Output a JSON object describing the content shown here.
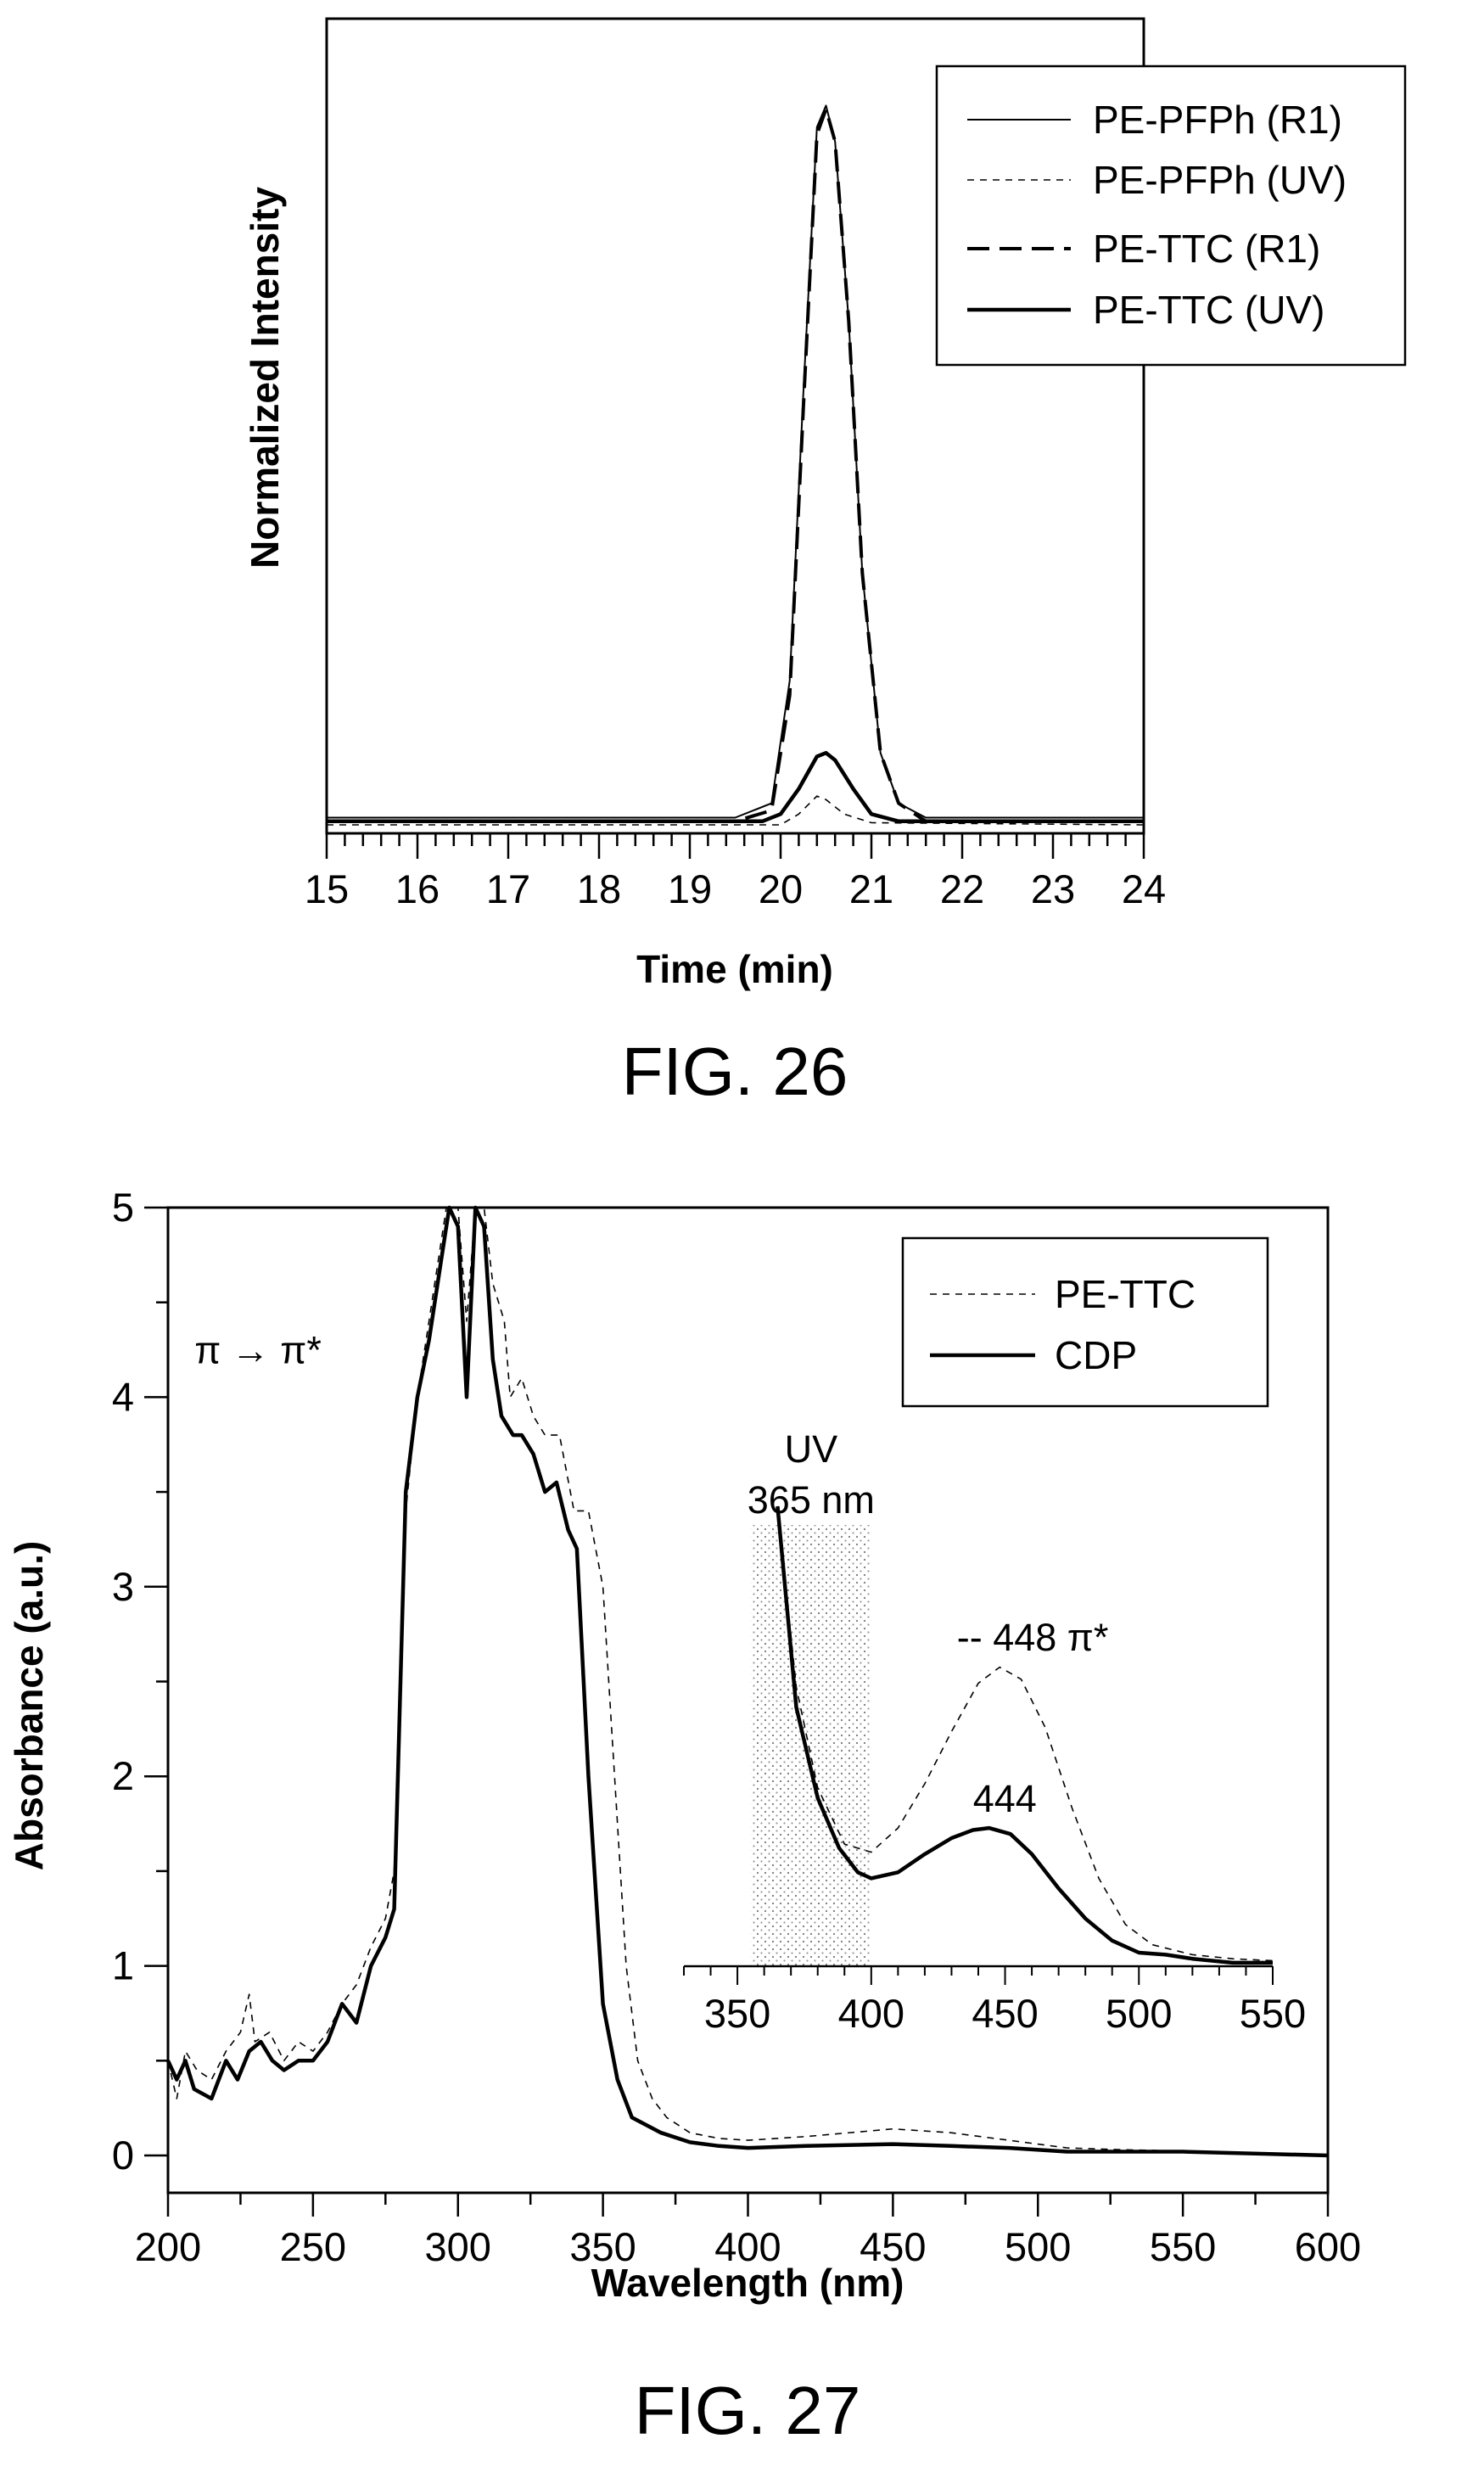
{
  "figures": [
    {
      "caption": "FIG. 26",
      "chart_data": {
        "type": "line",
        "title": "",
        "xlabel": "Time (min)",
        "ylabel": "Normalized Intensity",
        "xlim": [
          15,
          24
        ],
        "ylim": [
          0,
          1.05
        ],
        "x_ticks": [
          15,
          16,
          17,
          18,
          19,
          20,
          21,
          22,
          23,
          24
        ],
        "grid": false,
        "legend_position": "top-right",
        "series": [
          {
            "name": "PE-PFPh (R1)",
            "style": "thin-solid",
            "points": [
              [
                15,
                0.01
              ],
              [
                19.5,
                0.01
              ],
              [
                19.9,
                0.03
              ],
              [
                20.1,
                0.2
              ],
              [
                20.25,
                0.6
              ],
              [
                20.4,
                0.97
              ],
              [
                20.5,
                1.0
              ],
              [
                20.6,
                0.95
              ],
              [
                20.75,
                0.7
              ],
              [
                20.9,
                0.35
              ],
              [
                21.1,
                0.1
              ],
              [
                21.3,
                0.03
              ],
              [
                21.6,
                0.01
              ],
              [
                24,
                0.01
              ]
            ]
          },
          {
            "name": "PE-PFPh (UV)",
            "style": "thin-dashed",
            "points": [
              [
                15,
                0.0
              ],
              [
                20.0,
                0.0
              ],
              [
                20.2,
                0.015
              ],
              [
                20.4,
                0.04
              ],
              [
                20.5,
                0.035
              ],
              [
                20.7,
                0.015
              ],
              [
                21.0,
                0.003
              ],
              [
                24,
                0.0
              ]
            ]
          },
          {
            "name": "PE-TTC (R1)",
            "style": "long-dashed",
            "points": [
              [
                15,
                0.005
              ],
              [
                19.5,
                0.005
              ],
              [
                19.9,
                0.02
              ],
              [
                20.1,
                0.18
              ],
              [
                20.25,
                0.58
              ],
              [
                20.4,
                0.96
              ],
              [
                20.5,
                0.995
              ],
              [
                20.6,
                0.95
              ],
              [
                20.75,
                0.7
              ],
              [
                20.9,
                0.35
              ],
              [
                21.1,
                0.1
              ],
              [
                21.3,
                0.03
              ],
              [
                21.6,
                0.005
              ],
              [
                24,
                0.005
              ]
            ]
          },
          {
            "name": "PE-TTC (UV)",
            "style": "thick-solid",
            "points": [
              [
                15,
                0.005
              ],
              [
                19.8,
                0.005
              ],
              [
                20.0,
                0.015
              ],
              [
                20.2,
                0.05
              ],
              [
                20.4,
                0.095
              ],
              [
                20.5,
                0.1
              ],
              [
                20.6,
                0.09
              ],
              [
                20.8,
                0.05
              ],
              [
                21.0,
                0.015
              ],
              [
                21.3,
                0.005
              ],
              [
                24,
                0.005
              ]
            ]
          }
        ]
      }
    },
    {
      "caption": "FIG. 27",
      "chart_data": {
        "type": "line",
        "title": "",
        "xlabel": "Wavelength (nm)",
        "ylabel": "Absorbance (a.u.)",
        "xlim": [
          200,
          600
        ],
        "ylim": [
          -0.2,
          5
        ],
        "x_ticks": [
          200,
          250,
          300,
          350,
          400,
          450,
          500,
          550,
          600
        ],
        "y_ticks": [
          0,
          1,
          2,
          3,
          4,
          5
        ],
        "grid": false,
        "legend_position": "top-right",
        "annotations": [
          {
            "text": "π → π*",
            "x": 215,
            "y": 4.25
          }
        ],
        "series": [
          {
            "name": "PE-TTC",
            "style": "thin-dashed",
            "points": [
              [
                200,
                0.5
              ],
              [
                203,
                0.3
              ],
              [
                206,
                0.55
              ],
              [
                210,
                0.45
              ],
              [
                215,
                0.4
              ],
              [
                220,
                0.55
              ],
              [
                225,
                0.65
              ],
              [
                228,
                0.85
              ],
              [
                230,
                0.6
              ],
              [
                235,
                0.65
              ],
              [
                240,
                0.5
              ],
              [
                245,
                0.6
              ],
              [
                250,
                0.55
              ],
              [
                255,
                0.65
              ],
              [
                260,
                0.8
              ],
              [
                265,
                0.9
              ],
              [
                270,
                1.1
              ],
              [
                275,
                1.25
              ],
              [
                278,
                1.5
              ],
              [
                282,
                3.4
              ],
              [
                286,
                4.0
              ],
              [
                290,
                4.4
              ],
              [
                293,
                4.7
              ],
              [
                296,
                5.0
              ],
              [
                300,
                5.0
              ],
              [
                303,
                4.4
              ],
              [
                306,
                5.0
              ],
              [
                309,
                5.0
              ],
              [
                312,
                4.6
              ],
              [
                316,
                4.4
              ],
              [
                318,
                4.0
              ],
              [
                322,
                4.1
              ],
              [
                326,
                3.9
              ],
              [
                330,
                3.8
              ],
              [
                335,
                3.8
              ],
              [
                340,
                3.4
              ],
              [
                345,
                3.4
              ],
              [
                350,
                3.0
              ],
              [
                354,
                2.0
              ],
              [
                358,
                1.0
              ],
              [
                362,
                0.5
              ],
              [
                367,
                0.3
              ],
              [
                372,
                0.2
              ],
              [
                380,
                0.12
              ],
              [
                390,
                0.09
              ],
              [
                400,
                0.08
              ],
              [
                420,
                0.1
              ],
              [
                450,
                0.14
              ],
              [
                470,
                0.12
              ],
              [
                490,
                0.08
              ],
              [
                510,
                0.04
              ],
              [
                530,
                0.03
              ],
              [
                560,
                0.02
              ],
              [
                600,
                0.0
              ]
            ]
          },
          {
            "name": "CDP",
            "style": "thick-solid",
            "points": [
              [
                200,
                0.5
              ],
              [
                203,
                0.4
              ],
              [
                206,
                0.5
              ],
              [
                209,
                0.35
              ],
              [
                215,
                0.3
              ],
              [
                220,
                0.5
              ],
              [
                224,
                0.4
              ],
              [
                228,
                0.55
              ],
              [
                232,
                0.6
              ],
              [
                236,
                0.5
              ],
              [
                240,
                0.45
              ],
              [
                245,
                0.5
              ],
              [
                250,
                0.5
              ],
              [
                255,
                0.6
              ],
              [
                260,
                0.8
              ],
              [
                265,
                0.7
              ],
              [
                270,
                1.0
              ],
              [
                275,
                1.15
              ],
              [
                278,
                1.3
              ],
              [
                282,
                3.5
              ],
              [
                286,
                4.0
              ],
              [
                290,
                4.3
              ],
              [
                294,
                4.7
              ],
              [
                297,
                5.0
              ],
              [
                300,
                4.9
              ],
              [
                303,
                4.0
              ],
              [
                306,
                5.0
              ],
              [
                309,
                4.9
              ],
              [
                312,
                4.2
              ],
              [
                315,
                3.9
              ],
              [
                319,
                3.8
              ],
              [
                322,
                3.8
              ],
              [
                326,
                3.7
              ],
              [
                330,
                3.5
              ],
              [
                334,
                3.55
              ],
              [
                338,
                3.3
              ],
              [
                341,
                3.2
              ],
              [
                345,
                2.0
              ],
              [
                350,
                0.8
              ],
              [
                355,
                0.4
              ],
              [
                360,
                0.2
              ],
              [
                370,
                0.12
              ],
              [
                380,
                0.07
              ],
              [
                390,
                0.05
              ],
              [
                400,
                0.04
              ],
              [
                420,
                0.05
              ],
              [
                450,
                0.06
              ],
              [
                470,
                0.05
              ],
              [
                490,
                0.04
              ],
              [
                510,
                0.02
              ],
              [
                550,
                0.02
              ],
              [
                600,
                0.0
              ]
            ]
          }
        ]
      },
      "inset_chart_data": {
        "type": "line",
        "xlim": [
          330,
          550
        ],
        "x_ticks": [
          350,
          400,
          450,
          500,
          550
        ],
        "shaded_region": {
          "x_range": [
            355,
            400
          ],
          "label_line1": "UV",
          "label_line2": "365 nm"
        },
        "annotations": [
          {
            "text": "-- 448 π*",
            "x": 432,
            "y": 4.2
          },
          {
            "text": "444",
            "x": 438,
            "y": 1.8
          }
        ],
        "series": [
          {
            "name": "PE-TTC",
            "style": "thin-dashed",
            "points": [
              [
                365,
                3.3
              ],
              [
                372,
                2.4
              ],
              [
                380,
                1.9
              ],
              [
                390,
                1.62
              ],
              [
                400,
                1.58
              ],
              [
                410,
                1.7
              ],
              [
                420,
                1.92
              ],
              [
                430,
                2.18
              ],
              [
                440,
                2.42
              ],
              [
                448,
                2.5
              ],
              [
                456,
                2.44
              ],
              [
                465,
                2.2
              ],
              [
                475,
                1.8
              ],
              [
                485,
                1.45
              ],
              [
                495,
                1.22
              ],
              [
                505,
                1.12
              ],
              [
                520,
                1.07
              ],
              [
                535,
                1.05
              ],
              [
                550,
                1.04
              ]
            ]
          },
          {
            "name": "CDP",
            "style": "thick-solid",
            "points": [
              [
                365,
                3.3
              ],
              [
                372,
                2.3
              ],
              [
                380,
                1.85
              ],
              [
                388,
                1.6
              ],
              [
                395,
                1.48
              ],
              [
                400,
                1.45
              ],
              [
                410,
                1.48
              ],
              [
                420,
                1.57
              ],
              [
                430,
                1.65
              ],
              [
                438,
                1.69
              ],
              [
                444,
                1.7
              ],
              [
                452,
                1.67
              ],
              [
                460,
                1.57
              ],
              [
                470,
                1.4
              ],
              [
                480,
                1.25
              ],
              [
                490,
                1.14
              ],
              [
                500,
                1.08
              ],
              [
                510,
                1.07
              ],
              [
                520,
                1.05
              ],
              [
                535,
                1.03
              ],
              [
                550,
                1.03
              ]
            ]
          }
        ]
      }
    }
  ]
}
